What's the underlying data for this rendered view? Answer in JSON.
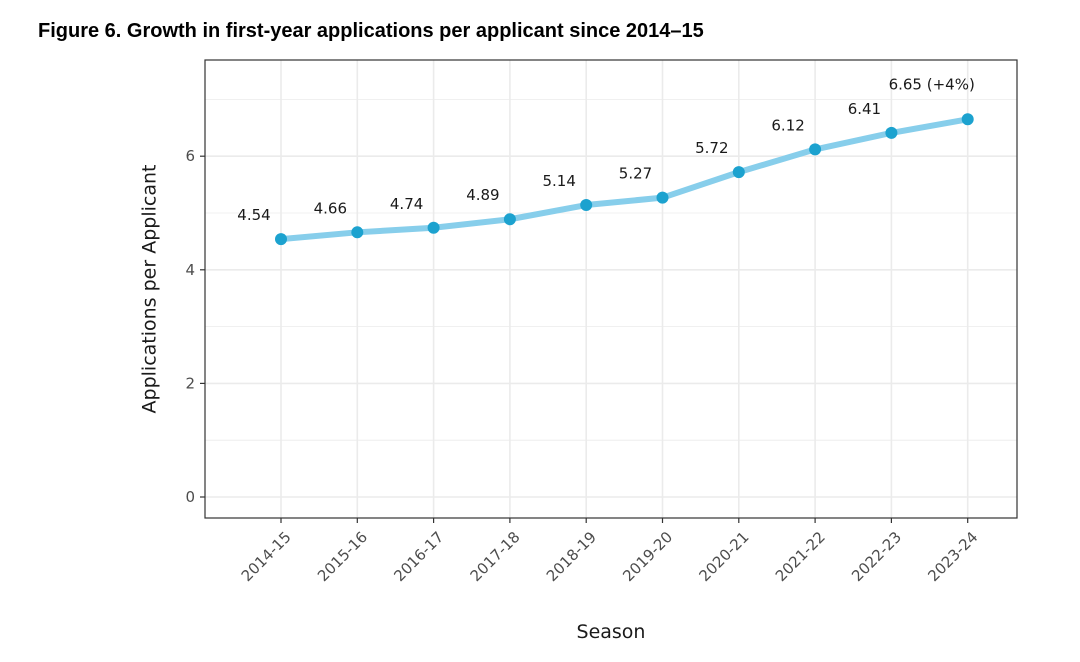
{
  "figure_title": "Figure 6. Growth in first-year applications per applicant since 2014–15",
  "chart_data": {
    "type": "line",
    "title": "Figure 6. Growth in first-year applications per applicant since 2014–15",
    "xlabel": "Season",
    "ylabel": "Applications per Applicant",
    "categories": [
      "2014-15",
      "2015-16",
      "2016-17",
      "2017-18",
      "2018-19",
      "2019-20",
      "2020-21",
      "2021-22",
      "2022-23",
      "2023-24"
    ],
    "values": [
      4.54,
      4.66,
      4.74,
      4.89,
      5.14,
      5.27,
      5.72,
      6.12,
      6.41,
      6.65
    ],
    "data_labels": [
      "4.54",
      "4.66",
      "4.74",
      "4.89",
      "5.14",
      "5.27",
      "5.72",
      "6.12",
      "6.41",
      "6.65 (+4%)"
    ],
    "yticks": [
      0,
      2,
      4,
      6
    ],
    "ylim": [
      -0.37,
      7.5
    ],
    "grid": true,
    "legend": "none",
    "colors": {
      "line": "#87ceeb",
      "point": "#1ca2cf",
      "grid": "#ebebeb",
      "panel_border": "#333333"
    }
  }
}
